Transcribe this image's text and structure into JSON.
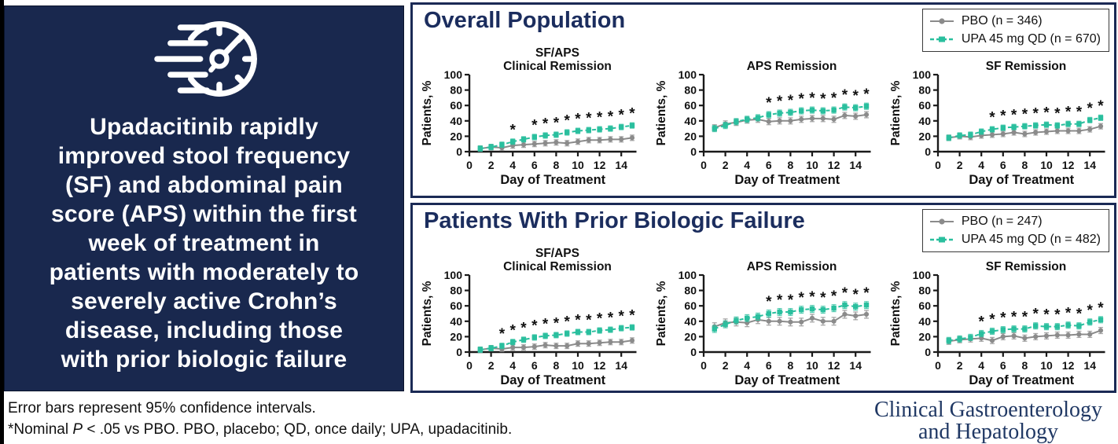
{
  "left_panel": {
    "icon": "speedometer-icon",
    "lines": [
      "Upadacitinib rapidly",
      "improved stool frequency",
      "(SF) and abdominal pain",
      "score (APS) within the first",
      "week of treatment in",
      "patients with moderately to",
      "severely active Crohn’s",
      "disease, including those",
      "with prior biologic failure"
    ]
  },
  "footer": {
    "line1": "Error bars represent 95% confidence intervals.",
    "line2_pre": "*Nominal ",
    "line2_italic": "P",
    "line2_post": " < .05 vs PBO. PBO, placebo; QD, once daily; UPA, upadacitinib."
  },
  "journal": {
    "line1": "Clinical Gastroenterology",
    "line2": "and Hepatology"
  },
  "colors": {
    "navy_background": "#19284e",
    "navy_border": "#1b2a55",
    "navy_title": "#1b2d5e",
    "pbo_gray": "#8b8b8b",
    "upa_teal": "#2abf9e",
    "axis_black": "#1a1a1a",
    "journal_navy": "#203864"
  },
  "chart_data": {
    "type": "line",
    "x": [
      1,
      2,
      3,
      4,
      5,
      6,
      7,
      8,
      9,
      10,
      11,
      12,
      13,
      14,
      15
    ],
    "xlabel": "Day of Treatment",
    "ylabel": "Patients, %",
    "ylim": [
      0,
      100
    ],
    "yticks": [
      0,
      20,
      40,
      60,
      80,
      100
    ],
    "xticks": [
      0,
      2,
      4,
      6,
      8,
      10,
      12,
      14
    ],
    "grid": false,
    "legend_position": "top-right",
    "significance_note": "* = nominal P < .05 vs PBO, shown above UPA points",
    "error_bars": "95% CI, approx +/-4 points",
    "panels": [
      {
        "title": "Overall Population",
        "legend": [
          {
            "label": "PBO (n = 346)",
            "marker": "circle",
            "color": "#8b8b8b",
            "line": "solid"
          },
          {
            "label": "UPA 45 mg QD (n = 670)",
            "marker": "square",
            "color": "#2abf9e",
            "line": "dashed"
          }
        ],
        "charts": [
          {
            "slug": "overall-sf-aps-clinical-remission-chart",
            "title_lines": [
              "SF/APS",
              "Clinical Remission"
            ],
            "series": [
              {
                "name": "PBO",
                "values": [
                  4,
                  6,
                  5,
                  8,
                  9,
                  10,
                  11,
                  12,
                  11,
                  13,
                  15,
                  15,
                  16,
                  16,
                  18
                ],
                "ci": 3.5
              },
              {
                "name": "UPA 45 mg QD",
                "values": [
                  4,
                  6,
                  9,
                  13,
                  16,
                  19,
                  21,
                  22,
                  25,
                  27,
                  28,
                  29,
                  30,
                  32,
                  34
                ],
                "ci": 3.5
              }
            ],
            "sig_days": [
              4,
              6,
              7,
              8,
              9,
              10,
              11,
              12,
              13,
              14,
              15
            ]
          },
          {
            "slug": "overall-aps-remission-chart",
            "title_lines": [
              "APS Remission"
            ],
            "series": [
              {
                "name": "PBO",
                "values": [
                  31,
                  36,
                  38,
                  41,
                  42,
                  39,
                  40,
                  40,
                  42,
                  43,
                  43,
                  42,
                  47,
                  46,
                  48
                ],
                "ci": 4
              },
              {
                "name": "UPA 45 mg QD",
                "values": [
                  30,
                  34,
                  39,
                  42,
                  44,
                  48,
                  50,
                  51,
                  53,
                  54,
                  53,
                  54,
                  58,
                  57,
                  59
                ],
                "ci": 4
              }
            ],
            "sig_days": [
              6,
              7,
              8,
              9,
              10,
              11,
              12,
              13,
              14,
              15
            ]
          },
          {
            "slug": "overall-sf-remission-chart",
            "title_lines": [
              "SF Remission"
            ],
            "series": [
              {
                "name": "PBO",
                "values": [
                  18,
                  20,
                  19,
                  21,
                  22,
                  23,
                  25,
                  23,
                  25,
                  26,
                  27,
                  27,
                  27,
                  29,
                  33
                ],
                "ci": 3.5
              },
              {
                "name": "UPA 45 mg QD",
                "values": [
                  18,
                  21,
                  22,
                  26,
                  29,
                  31,
                  32,
                  33,
                  34,
                  35,
                  34,
                  36,
                  36,
                  41,
                  44
                ],
                "ci": 3.5
              }
            ],
            "sig_days": [
              5,
              6,
              7,
              8,
              9,
              10,
              11,
              12,
              13,
              14,
              15
            ]
          }
        ]
      },
      {
        "title": "Patients With Prior Biologic Failure",
        "legend": [
          {
            "label": "PBO (n = 247)",
            "marker": "circle",
            "color": "#8b8b8b",
            "line": "solid"
          },
          {
            "label": "UPA 45 mg QD (n = 482)",
            "marker": "square",
            "color": "#2abf9e",
            "line": "dashed"
          }
        ],
        "charts": [
          {
            "slug": "biofailure-sf-aps-clinical-remission-chart",
            "title_lines": [
              "SF/APS",
              "Clinical Remission"
            ],
            "series": [
              {
                "name": "PBO",
                "values": [
                  3,
                  5,
                  4,
                  6,
                  6,
                  7,
                  9,
                  8,
                  8,
                  11,
                  11,
                  12,
                  13,
                  13,
                  15
                ],
                "ci": 3.5
              },
              {
                "name": "UPA 45 mg QD",
                "values": [
                  3,
                  5,
                  8,
                  13,
                  16,
                  19,
                  21,
                  22,
                  24,
                  26,
                  26,
                  28,
                  29,
                  31,
                  32
                ],
                "ci": 3.5
              }
            ],
            "sig_days": [
              3,
              4,
              5,
              6,
              7,
              8,
              9,
              10,
              11,
              12,
              13,
              14,
              15
            ]
          },
          {
            "slug": "biofailure-aps-remission-chart",
            "title_lines": [
              "APS Remission"
            ],
            "series": [
              {
                "name": "PBO",
                "values": [
                  33,
                  38,
                  39,
                  38,
                  42,
                  40,
                  40,
                  39,
                  39,
                  44,
                  40,
                  40,
                  49,
                  47,
                  49
                ],
                "ci": 5
              },
              {
                "name": "UPA 45 mg QD",
                "values": [
                  30,
                  36,
                  41,
                  44,
                  46,
                  50,
                  52,
                  52,
                  55,
                  56,
                  55,
                  57,
                  61,
                  59,
                  61
                ],
                "ci": 4.5
              }
            ],
            "sig_days": [
              6,
              7,
              8,
              9,
              10,
              11,
              12,
              13,
              14,
              15
            ]
          },
          {
            "slug": "biofailure-sf-remission-chart",
            "title_lines": [
              "SF Remission"
            ],
            "series": [
              {
                "name": "PBO",
                "values": [
                  14,
                  16,
                  17,
                  18,
                  15,
                  20,
                  21,
                  18,
                  20,
                  21,
                  22,
                  22,
                  23,
                  23,
                  28
                ],
                "ci": 4
              },
              {
                "name": "UPA 45 mg QD",
                "values": [
                  15,
                  17,
                  19,
                  24,
                  27,
                  29,
                  30,
                  30,
                  34,
                  33,
                  33,
                  35,
                  34,
                  39,
                  42
                ],
                "ci": 4
              }
            ],
            "sig_days": [
              4,
              5,
              6,
              7,
              8,
              9,
              10,
              11,
              12,
              13,
              14,
              15
            ]
          }
        ]
      }
    ]
  }
}
